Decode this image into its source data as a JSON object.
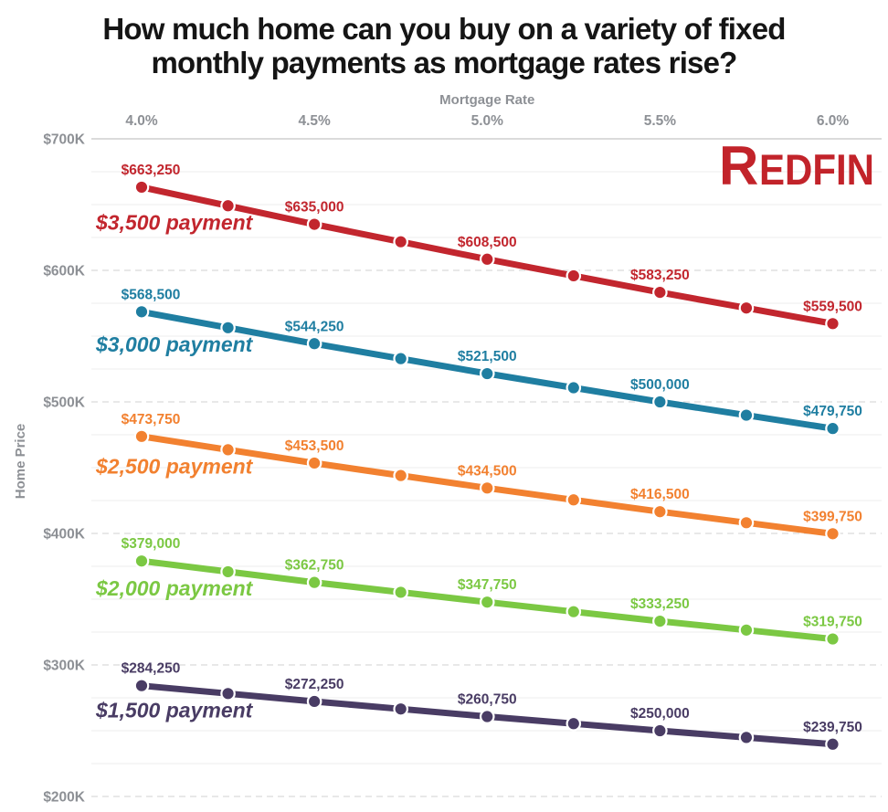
{
  "title": {
    "line1": "How much home can you buy on a variety of fixed",
    "line2": "monthly payments as mortgage rates rise?"
  },
  "logo": {
    "text": "REDFIN",
    "color": "#c2232a"
  },
  "colors": {
    "background": "#ffffff",
    "title_text": "#151515",
    "axis_text": "#8d9095",
    "grid_top": "#cfcfcf",
    "grid_major": "#d9d9d9",
    "grid_minor": "#ededed"
  },
  "chart_data": {
    "type": "line",
    "title": "How much home can you buy on a variety of fixed monthly payments as mortgage rates rise?",
    "xlabel": "Mortgage Rate",
    "ylabel": "Home Price",
    "xlim": [
      4.0,
      6.0
    ],
    "ylim": [
      200000,
      700000
    ],
    "x": [
      4.0,
      4.25,
      4.5,
      4.75,
      5.0,
      5.25,
      5.5,
      5.75,
      6.0
    ],
    "x_tick_rates": [
      4.0,
      4.5,
      5.0,
      5.5,
      6.0
    ],
    "x_tick_labels": [
      "4.0%",
      "4.5%",
      "5.0%",
      "5.5%",
      "6.0%"
    ],
    "y_tick_values": [
      700000,
      600000,
      500000,
      400000,
      300000,
      200000
    ],
    "y_tick_labels": [
      "$700K",
      "$600K",
      "$500K",
      "$400K",
      "$300K",
      "$200K"
    ],
    "grid": {
      "top_line": "solid",
      "major": "dashed",
      "minor_step": 25000
    },
    "legend_position": "inline-left",
    "series": [
      {
        "name": "$3,500 payment",
        "color": "#c2262e",
        "values": [
          663250,
          649125,
          635000,
          621750,
          608500,
          595875,
          583250,
          571375,
          559500
        ],
        "labeled_points": [
          {
            "rate": 4.0,
            "value": 663250,
            "label": "$663,250"
          },
          {
            "rate": 4.5,
            "value": 635000,
            "label": "$635,000"
          },
          {
            "rate": 5.0,
            "value": 608500,
            "label": "$608,500"
          },
          {
            "rate": 5.5,
            "value": 583250,
            "label": "$583,250"
          },
          {
            "rate": 6.0,
            "value": 559500,
            "label": "$559,500"
          }
        ]
      },
      {
        "name": "$3,000 payment",
        "color": "#1f7ea1",
        "values": [
          568500,
          556375,
          544250,
          532875,
          521500,
          510750,
          500000,
          489875,
          479750
        ],
        "labeled_points": [
          {
            "rate": 4.0,
            "value": 568500,
            "label": "$568,500"
          },
          {
            "rate": 4.5,
            "value": 544250,
            "label": "$544,250"
          },
          {
            "rate": 5.0,
            "value": 521500,
            "label": "$521,500"
          },
          {
            "rate": 5.5,
            "value": 500000,
            "label": "$500,000"
          },
          {
            "rate": 6.0,
            "value": 479750,
            "label": "$479,750"
          }
        ]
      },
      {
        "name": "$2,500 payment",
        "color": "#f28130",
        "values": [
          473750,
          463625,
          453500,
          444000,
          434500,
          425500,
          416500,
          408125,
          399750
        ],
        "labeled_points": [
          {
            "rate": 4.0,
            "value": 473750,
            "label": "$473,750"
          },
          {
            "rate": 4.5,
            "value": 453500,
            "label": "$453,500"
          },
          {
            "rate": 5.0,
            "value": 434500,
            "label": "$434,500"
          },
          {
            "rate": 5.5,
            "value": 416500,
            "label": "$416,500"
          },
          {
            "rate": 6.0,
            "value": 399750,
            "label": "$399,750"
          }
        ]
      },
      {
        "name": "$2,000 payment",
        "color": "#7bc843",
        "values": [
          379000,
          370875,
          362750,
          355250,
          347750,
          340500,
          333250,
          326500,
          319750
        ],
        "labeled_points": [
          {
            "rate": 4.0,
            "value": 379000,
            "label": "$379,000"
          },
          {
            "rate": 4.5,
            "value": 362750,
            "label": "$362,750"
          },
          {
            "rate": 5.0,
            "value": 347750,
            "label": "$347,750"
          },
          {
            "rate": 5.5,
            "value": 333250,
            "label": "$333,250"
          },
          {
            "rate": 6.0,
            "value": 319750,
            "label": "$319,750"
          }
        ]
      },
      {
        "name": "$1,500 payment",
        "color": "#493c64",
        "values": [
          284250,
          278250,
          272250,
          266500,
          260750,
          255375,
          250000,
          244875,
          239750
        ],
        "labeled_points": [
          {
            "rate": 4.0,
            "value": 284250,
            "label": "$284,250"
          },
          {
            "rate": 4.5,
            "value": 272250,
            "label": "$272,250"
          },
          {
            "rate": 5.0,
            "value": 260750,
            "label": "$260,750"
          },
          {
            "rate": 5.5,
            "value": 250000,
            "label": "$250,000"
          },
          {
            "rate": 6.0,
            "value": 239750,
            "label": "$239,750"
          }
        ]
      }
    ]
  }
}
